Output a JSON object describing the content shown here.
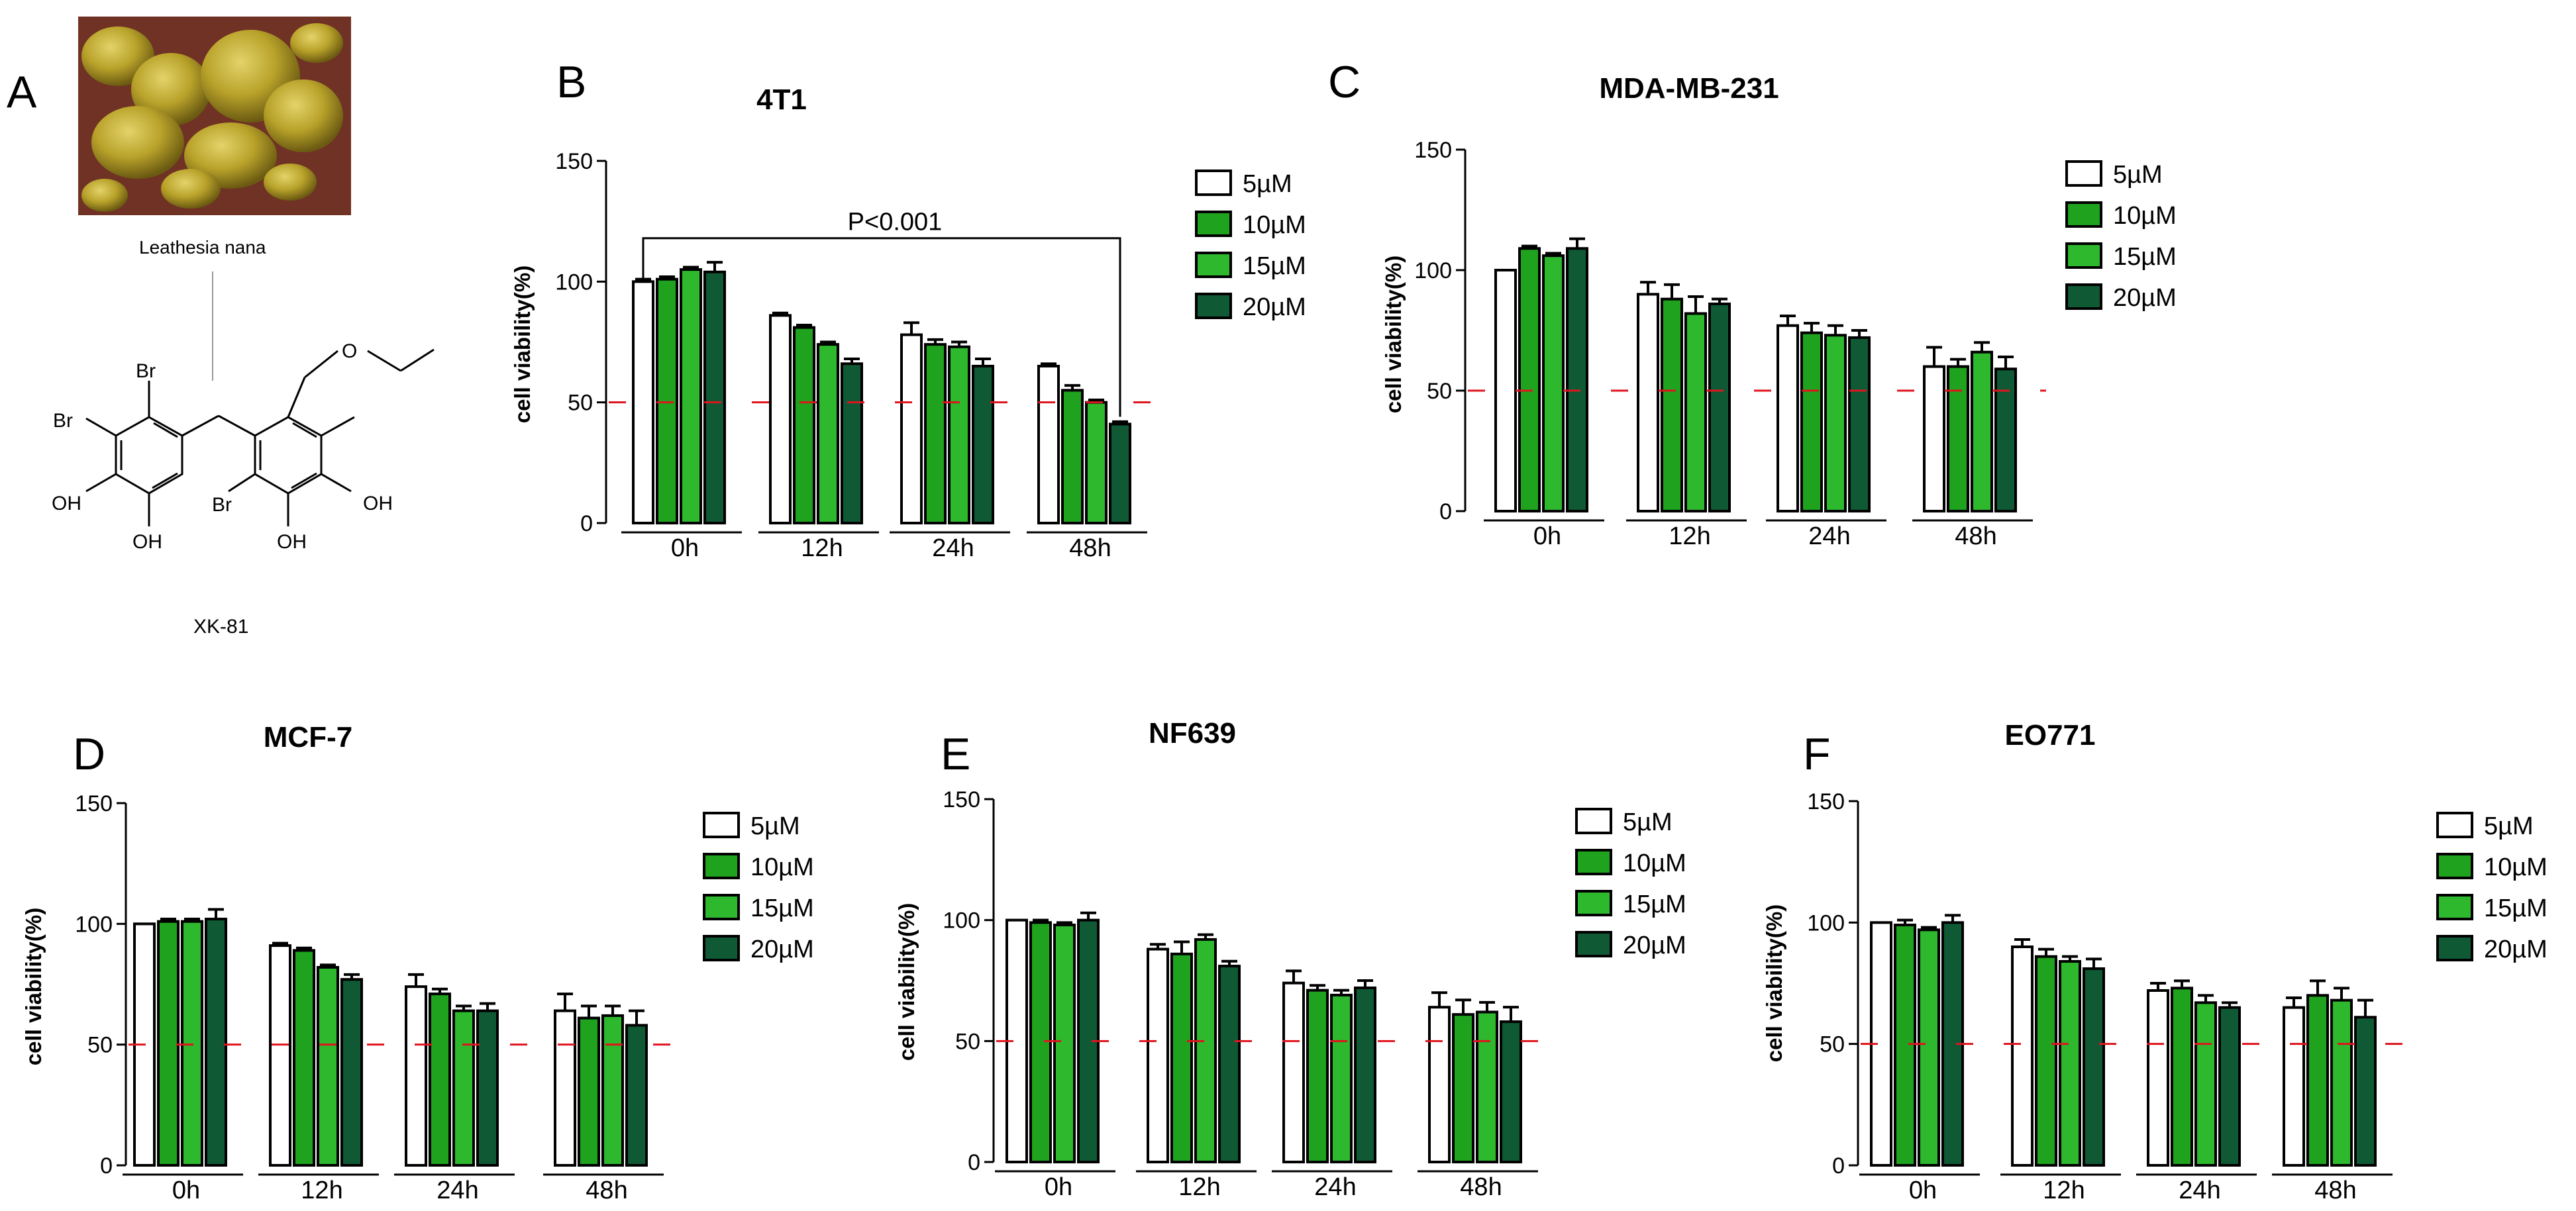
{
  "panels": {
    "A": "A",
    "B": "B",
    "C": "C",
    "D": "D",
    "E": "E",
    "F": "F"
  },
  "photo_caption": "Leathesia nana",
  "compound": {
    "name": "XK-81",
    "atoms": [
      "Br",
      "Br",
      "Br",
      "OH",
      "OH",
      "OH",
      "OH",
      "O"
    ]
  },
  "colors": {
    "5µM": "#ffffff",
    "10µM": "#1fa31f",
    "15µM": "#2db82d",
    "20µM": "#0f5a35",
    "threshold": "#e0141e"
  },
  "chart_data": [
    {
      "panel": "B",
      "type": "bar",
      "title": "4T1",
      "ylabel": "cell viability(%)",
      "xlabel": "",
      "categories": [
        "0h",
        "12h",
        "24h",
        "48h"
      ],
      "yticks": [
        0,
        50,
        100,
        150
      ],
      "ylim": [
        0,
        150
      ],
      "threshold": 50,
      "legend": [
        "5µM",
        "10µM",
        "15µM",
        "20µM"
      ],
      "legend_position": "top-right",
      "annotation": "P<0.001",
      "series": [
        {
          "name": "5µM",
          "values": [
            100,
            86,
            78,
            65
          ],
          "errors": [
            1,
            1,
            5,
            1
          ]
        },
        {
          "name": "10µM",
          "values": [
            101,
            81,
            74,
            55
          ],
          "errors": [
            1,
            1,
            2,
            2
          ]
        },
        {
          "name": "15µM",
          "values": [
            105,
            74,
            73,
            50
          ],
          "errors": [
            1,
            1,
            2,
            1
          ]
        },
        {
          "name": "20µM",
          "values": [
            104,
            66,
            65,
            41
          ],
          "errors": [
            4,
            2,
            3,
            1
          ]
        }
      ]
    },
    {
      "panel": "C",
      "type": "bar",
      "title": "MDA-MB-231",
      "ylabel": "cell viability(%)",
      "xlabel": "",
      "categories": [
        "0h",
        "12h",
        "24h",
        "48h"
      ],
      "yticks": [
        0,
        50,
        100,
        150
      ],
      "ylim": [
        0,
        150
      ],
      "threshold": 50,
      "legend": [
        "5µM",
        "10µM",
        "15µM",
        "20µM"
      ],
      "legend_position": "top-right",
      "series": [
        {
          "name": "5µM",
          "values": [
            100,
            90,
            77,
            60
          ],
          "errors": [
            0,
            5,
            4,
            8
          ]
        },
        {
          "name": "10µM",
          "values": [
            109,
            88,
            74,
            60
          ],
          "errors": [
            1,
            6,
            4,
            3
          ]
        },
        {
          "name": "15µM",
          "values": [
            106,
            82,
            73,
            66
          ],
          "errors": [
            1,
            7,
            4,
            4
          ]
        },
        {
          "name": "20µM",
          "values": [
            109,
            86,
            72,
            59
          ],
          "errors": [
            4,
            2,
            3,
            5
          ]
        }
      ]
    },
    {
      "panel": "D",
      "type": "bar",
      "title": "MCF-7",
      "ylabel": "cell viability(%)",
      "xlabel": "",
      "categories": [
        "0h",
        "12h",
        "24h",
        "48h"
      ],
      "yticks": [
        0,
        50,
        100,
        150
      ],
      "ylim": [
        0,
        150
      ],
      "threshold": 50,
      "legend": [
        "5µM",
        "10µM",
        "15µM",
        "20µM"
      ],
      "legend_position": "top-right",
      "series": [
        {
          "name": "5µM",
          "values": [
            100,
            91,
            74,
            64
          ],
          "errors": [
            0,
            1,
            5,
            7
          ]
        },
        {
          "name": "10µM",
          "values": [
            101,
            89,
            71,
            61
          ],
          "errors": [
            1,
            1,
            2,
            5
          ]
        },
        {
          "name": "15µM",
          "values": [
            101,
            82,
            64,
            62
          ],
          "errors": [
            1,
            1,
            2,
            4
          ]
        },
        {
          "name": "20µM",
          "values": [
            102,
            77,
            64,
            58
          ],
          "errors": [
            4,
            2,
            3,
            6
          ]
        }
      ]
    },
    {
      "panel": "E",
      "type": "bar",
      "title": "NF639",
      "ylabel": "cell viability(%)",
      "xlabel": "",
      "categories": [
        "0h",
        "12h",
        "24h",
        "48h"
      ],
      "yticks": [
        0,
        50,
        100,
        150
      ],
      "ylim": [
        0,
        150
      ],
      "threshold": 50,
      "legend": [
        "5µM",
        "10µM",
        "15µM",
        "20µM"
      ],
      "legend_position": "top-right",
      "series": [
        {
          "name": "5µM",
          "values": [
            100,
            88,
            74,
            64
          ],
          "errors": [
            0,
            2,
            5,
            6
          ]
        },
        {
          "name": "10µM",
          "values": [
            99,
            86,
            71,
            61
          ],
          "errors": [
            1,
            5,
            2,
            6
          ]
        },
        {
          "name": "15µM",
          "values": [
            98,
            92,
            69,
            62
          ],
          "errors": [
            1,
            2,
            2,
            4
          ]
        },
        {
          "name": "20µM",
          "values": [
            100,
            81,
            72,
            58
          ],
          "errors": [
            3,
            2,
            3,
            6
          ]
        }
      ]
    },
    {
      "panel": "F",
      "type": "bar",
      "title": "EO771",
      "ylabel": "cell viability(%)",
      "xlabel": "",
      "categories": [
        "0h",
        "12h",
        "24h",
        "48h"
      ],
      "yticks": [
        0,
        50,
        100,
        150
      ],
      "ylim": [
        0,
        150
      ],
      "threshold": 50,
      "legend": [
        "5µM",
        "10µM",
        "15µM",
        "20µM"
      ],
      "legend_position": "top-right",
      "series": [
        {
          "name": "5µM",
          "values": [
            100,
            90,
            72,
            65
          ],
          "errors": [
            0,
            3,
            3,
            4
          ]
        },
        {
          "name": "10µM",
          "values": [
            99,
            86,
            73,
            70
          ],
          "errors": [
            2,
            3,
            3,
            6
          ]
        },
        {
          "name": "15µM",
          "values": [
            97,
            84,
            67,
            68
          ],
          "errors": [
            1,
            2,
            3,
            5
          ]
        },
        {
          "name": "20µM",
          "values": [
            100,
            81,
            65,
            61
          ],
          "errors": [
            3,
            4,
            2,
            7
          ]
        }
      ]
    }
  ]
}
